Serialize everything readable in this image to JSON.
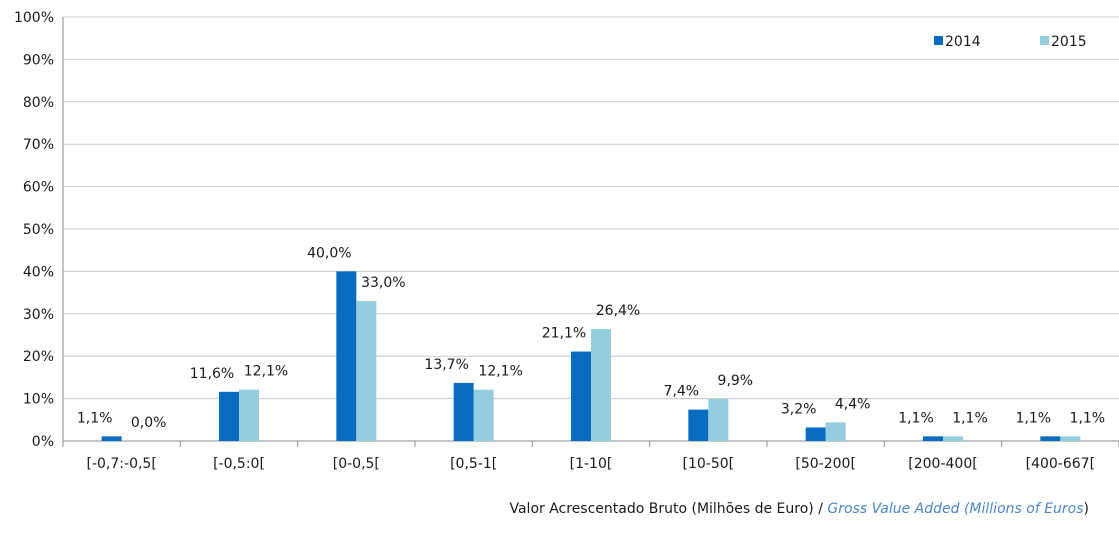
{
  "chart_data": {
    "type": "bar",
    "categories": [
      "[-0,7:-0,5[",
      "[-0,5:0[",
      "[0-0,5[",
      "[0,5-1[",
      "[1-10[",
      "[10-50[",
      "[50-200[",
      "[200-400[",
      "[400-667["
    ],
    "series": [
      {
        "name": "2014",
        "color": "#0a6cbf",
        "values": [
          1.1,
          11.6,
          40.0,
          13.7,
          21.1,
          7.4,
          3.2,
          1.1,
          1.1
        ],
        "labels": [
          "1,1%",
          "11,6%",
          "40,0%",
          "13,7%",
          "21,1%",
          "7,4%",
          "3,2%",
          "1,1%",
          "1,1%"
        ]
      },
      {
        "name": "2015",
        "color": "#95cde0",
        "values": [
          0.0,
          12.1,
          33.0,
          12.1,
          26.4,
          9.9,
          4.4,
          1.1,
          1.1
        ],
        "labels": [
          "0,0%",
          "12,1%",
          "33,0%",
          "12,1%",
          "26,4%",
          "9,9%",
          "4,4%",
          "1,1%",
          "1,1%"
        ]
      }
    ],
    "ylim": [
      0,
      100
    ],
    "yticks": [
      "0%",
      "10%",
      "20%",
      "30%",
      "40%",
      "50%",
      "60%",
      "70%",
      "80%",
      "90%",
      "100%"
    ],
    "grid": true,
    "legend_position": "top-right",
    "xlabel_pt": "Valor Acrescentado Bruto (Milhões de Euro) / ",
    "xlabel_en": "Gross Value Added (Millions of Euros",
    "xlabel_close": ")"
  }
}
